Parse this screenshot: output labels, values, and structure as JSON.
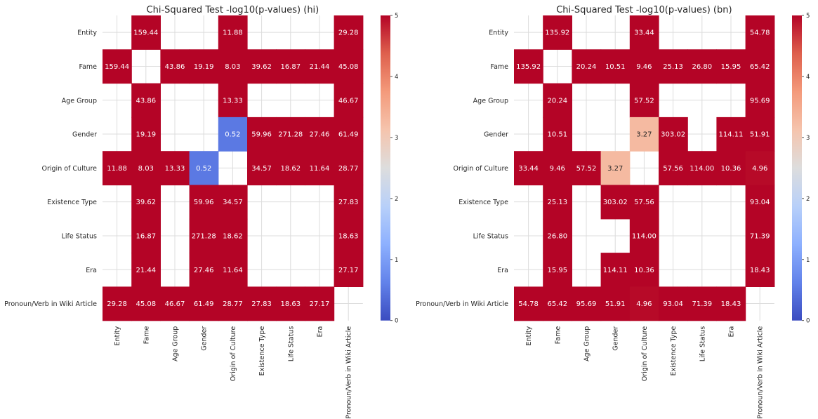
{
  "chart_data": [
    {
      "type": "heatmap",
      "title": "Chi-Squared Test -log10(p-values) (hi)",
      "rows": [
        "Entity",
        "Fame",
        "Age Group",
        "Gender",
        "Origin of Culture",
        "Existence Type",
        "Life Status",
        "Era",
        "Pronoun/Verb in Wiki Article"
      ],
      "columns": [
        "Entity",
        "Fame",
        "Age Group",
        "Gender",
        "Origin of Culture",
        "Existence Type",
        "Life Status",
        "Era",
        "Pronoun/Verb in Wiki Article"
      ],
      "values": [
        [
          null,
          159.44,
          null,
          null,
          11.88,
          null,
          null,
          null,
          29.28
        ],
        [
          159.44,
          null,
          43.86,
          19.19,
          8.03,
          39.62,
          16.87,
          21.44,
          45.08
        ],
        [
          null,
          43.86,
          null,
          null,
          13.33,
          null,
          null,
          null,
          46.67
        ],
        [
          null,
          19.19,
          null,
          null,
          0.52,
          59.96,
          271.28,
          27.46,
          61.49
        ],
        [
          11.88,
          8.03,
          13.33,
          0.52,
          null,
          34.57,
          18.62,
          11.64,
          28.77
        ],
        [
          null,
          39.62,
          null,
          59.96,
          34.57,
          null,
          null,
          null,
          27.83
        ],
        [
          null,
          16.87,
          null,
          271.28,
          18.62,
          null,
          null,
          null,
          18.63
        ],
        [
          null,
          21.44,
          null,
          27.46,
          11.64,
          null,
          null,
          null,
          27.17
        ],
        [
          29.28,
          45.08,
          46.67,
          61.49,
          28.77,
          27.83,
          18.63,
          27.17,
          null
        ]
      ],
      "color_range": [
        0,
        5
      ],
      "colormap": "coolwarm",
      "colorbar_ticks": [
        "0",
        "1",
        "2",
        "3",
        "4",
        "5"
      ],
      "grid": true
    },
    {
      "type": "heatmap",
      "title": "Chi-Squared Test -log10(p-values) (bn)",
      "rows": [
        "Entity",
        "Fame",
        "Age Group",
        "Gender",
        "Origin of Culture",
        "Existence Type",
        "Life Status",
        "Era",
        "Pronoun/Verb in Wiki Article"
      ],
      "columns": [
        "Entity",
        "Fame",
        "Age Group",
        "Gender",
        "Origin of Culture",
        "Existence Type",
        "Life Status",
        "Era",
        "Pronoun/Verb in Wiki Article"
      ],
      "values": [
        [
          null,
          135.92,
          null,
          null,
          33.44,
          null,
          null,
          null,
          54.78
        ],
        [
          135.92,
          null,
          20.24,
          10.51,
          9.46,
          25.13,
          26.8,
          15.95,
          65.42
        ],
        [
          null,
          20.24,
          null,
          null,
          57.52,
          null,
          null,
          null,
          95.69
        ],
        [
          null,
          10.51,
          null,
          null,
          3.27,
          303.02,
          null,
          114.11,
          51.91
        ],
        [
          33.44,
          9.46,
          57.52,
          3.27,
          null,
          57.56,
          114.0,
          10.36,
          4.96
        ],
        [
          null,
          25.13,
          null,
          303.02,
          57.56,
          null,
          null,
          null,
          93.04
        ],
        [
          null,
          26.8,
          null,
          null,
          114.0,
          null,
          null,
          null,
          71.39
        ],
        [
          null,
          15.95,
          null,
          114.11,
          10.36,
          null,
          null,
          null,
          18.43
        ],
        [
          54.78,
          65.42,
          95.69,
          51.91,
          4.96,
          93.04,
          71.39,
          18.43,
          null
        ]
      ],
      "color_range": [
        0,
        5
      ],
      "colormap": "coolwarm",
      "colorbar_ticks": [
        "0",
        "1",
        "2",
        "3",
        "4",
        "5"
      ],
      "grid": true
    }
  ]
}
